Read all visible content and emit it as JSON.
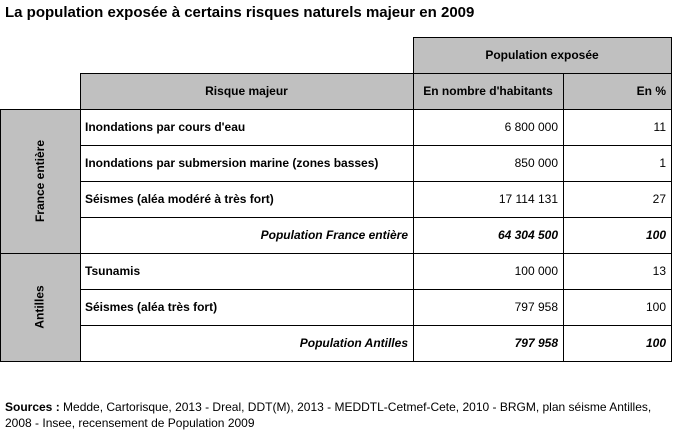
{
  "title": "La population exposée à certains risques naturels majeur en 2009",
  "header": {
    "group": "Population exposée",
    "risk": "Risque majeur",
    "count": "En nombre d'habitants",
    "pct": "En %"
  },
  "groups": [
    {
      "label": "France entière",
      "rows": [
        {
          "risk": "Inondations par cours d'eau",
          "count": "6 800 000",
          "pct": "11"
        },
        {
          "risk": "Inondations par submersion marine (zones basses)",
          "count": "850 000",
          "pct": "1"
        },
        {
          "risk": "Séismes (aléa modéré à très fort)",
          "count": "17 114 131",
          "pct": "27"
        }
      ],
      "total": {
        "label": "Population France entière",
        "count": "64 304 500",
        "pct": "100"
      }
    },
    {
      "label": "Antilles",
      "rows": [
        {
          "risk": "Tsunamis",
          "count": "100 000",
          "pct": "13"
        },
        {
          "risk": "Séismes (aléa très fort)",
          "count": "797 958",
          "pct": "100"
        }
      ],
      "total": {
        "label": "Population Antilles",
        "count": "797 958",
        "pct": "100"
      }
    }
  ],
  "sources": {
    "label": "Sources :",
    "text": " Medde, Cartorisque, 2013 - Dreal, DDT(M), 2013 - MEDDTL-Cetmef-Cete, 2010 - BRGM, plan séisme Antilles, 2008 - Insee, recensement de Population 2009"
  }
}
